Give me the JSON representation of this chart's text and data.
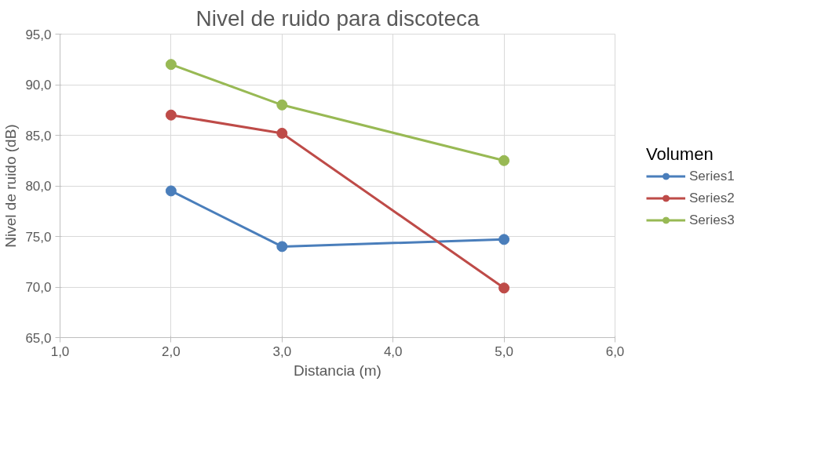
{
  "chart_data": {
    "type": "line",
    "title": "Nivel de ruido para discoteca",
    "xlabel": "Distancia (m)",
    "ylabel": "Nivel de ruido (dB)",
    "legend_title": "Volumen",
    "legend": "right",
    "grid": true,
    "marker": "circle",
    "line_style": "solid",
    "x": [
      2.0,
      3.0,
      5.0
    ],
    "xlim": [
      1.0,
      6.0
    ],
    "xticks": [
      {
        "value": 1,
        "label": "1,0"
      },
      {
        "value": 2,
        "label": "2,0"
      },
      {
        "value": 3,
        "label": "3,0"
      },
      {
        "value": 4,
        "label": "4,0"
      },
      {
        "value": 5,
        "label": "5,0"
      },
      {
        "value": 6,
        "label": "6,0"
      }
    ],
    "ylim": [
      65.0,
      95.0
    ],
    "yticks": [
      {
        "value": 65,
        "label": "65,0"
      },
      {
        "value": 70,
        "label": "70,0"
      },
      {
        "value": 75,
        "label": "75,0"
      },
      {
        "value": 80,
        "label": "80,0"
      },
      {
        "value": 85,
        "label": "85,0"
      },
      {
        "value": 90,
        "label": "90,0"
      },
      {
        "value": 95,
        "label": "95,0"
      }
    ],
    "series": [
      {
        "name": "Series1",
        "color": "#4a7ebb",
        "values": [
          79.5,
          74.0,
          74.7
        ]
      },
      {
        "name": "Series2",
        "color": "#be4b48",
        "values": [
          87.0,
          85.2,
          69.9
        ]
      },
      {
        "name": "Series3",
        "color": "#98b954",
        "values": [
          92.0,
          88.0,
          82.5
        ]
      }
    ]
  }
}
